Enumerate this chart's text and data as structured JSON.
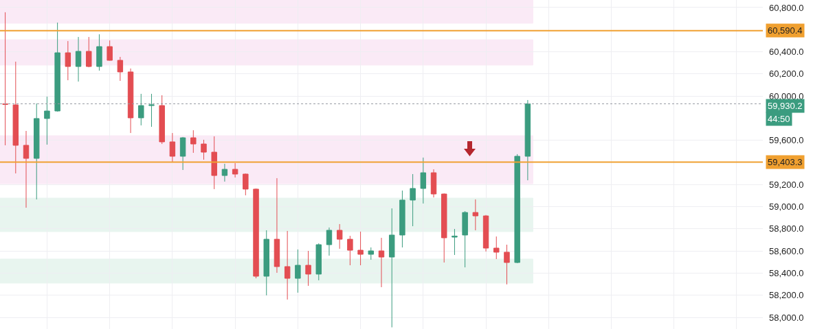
{
  "chart_data": {
    "type": "candlestick",
    "categories": [
      null,
      null,
      null,
      null,
      null,
      null,
      null,
      null,
      null,
      null,
      null,
      null,
      null,
      null,
      null,
      null,
      null,
      null,
      null,
      null,
      null,
      null,
      null,
      null,
      null,
      null,
      null,
      null,
      null,
      null,
      null,
      null,
      null,
      null,
      null,
      null,
      null,
      null,
      null,
      null,
      null,
      null,
      null,
      null,
      null,
      null,
      null,
      null,
      null,
      null,
      null,
      null,
      null,
      null,
      null,
      null,
      null,
      null,
      null,
      null,
      null,
      null,
      null,
      null,
      null,
      null,
      null,
      null,
      null,
      null,
      null,
      null,
      null
    ],
    "ohlc": [
      [
        59930,
        60757,
        59555,
        59925
      ],
      [
        59920,
        60311,
        59301,
        59555
      ],
      [
        59555,
        59685,
        58991,
        59437
      ],
      [
        59437,
        59933,
        59066,
        59797
      ],
      [
        59797,
        59995,
        59561,
        59865
      ],
      [
        59865,
        60664,
        59860,
        60391
      ],
      [
        60391,
        60497,
        60143,
        60267
      ],
      [
        60267,
        60534,
        60131,
        60404
      ],
      [
        60404,
        60534,
        60260,
        60267
      ],
      [
        60267,
        60558,
        60230,
        60447
      ],
      [
        60447,
        60503,
        60320,
        60323
      ],
      [
        60323,
        60354,
        60137,
        60218
      ],
      [
        60218,
        60249,
        59666,
        59803
      ],
      [
        59803,
        60020,
        59735,
        59914
      ],
      [
        59914,
        60020,
        59722,
        59920
      ],
      [
        59914,
        60007,
        59567,
        59586
      ],
      [
        59586,
        59666,
        59400,
        59456
      ],
      [
        59456,
        59630,
        59332,
        59623
      ],
      [
        59623,
        59691,
        59487,
        59567
      ],
      [
        59567,
        59605,
        59425,
        59493
      ],
      [
        59493,
        59636,
        59159,
        59282
      ],
      [
        59282,
        59388,
        59227,
        59338
      ],
      [
        59338,
        59394,
        59264,
        59295
      ],
      [
        59295,
        59300,
        59103,
        59159
      ],
      [
        59159,
        59165,
        58353,
        58372
      ],
      [
        58372,
        58787,
        58199,
        58706
      ],
      [
        58706,
        59258,
        58403,
        58459
      ],
      [
        58459,
        58781,
        58161,
        58353
      ],
      [
        58353,
        58614,
        58223,
        58471
      ],
      [
        58471,
        58601,
        58285,
        58391
      ],
      [
        58391,
        58669,
        58335,
        58657
      ],
      [
        58657,
        58812,
        58558,
        58787
      ],
      [
        58787,
        58843,
        58620,
        58706
      ],
      [
        58706,
        58737,
        58471,
        58607
      ],
      [
        58607,
        58775,
        58471,
        58570
      ],
      [
        58570,
        58632,
        58521,
        58601
      ],
      [
        58601,
        58719,
        58273,
        58545
      ],
      [
        58545,
        58985,
        57910,
        58744
      ],
      [
        58744,
        59146,
        58632,
        59060
      ],
      [
        59060,
        59295,
        58824,
        59165
      ],
      [
        59165,
        59444,
        59029,
        59307
      ],
      [
        59307,
        59338,
        59084,
        59115
      ],
      [
        59115,
        59120,
        58496,
        58719
      ],
      [
        58725,
        58799,
        58564,
        58735
      ],
      [
        58744,
        58960,
        58452,
        58948
      ],
      [
        58948,
        59066,
        58787,
        58917
      ],
      [
        58917,
        58925,
        58595,
        58626
      ],
      [
        58626,
        58731,
        58527,
        58589
      ],
      [
        58589,
        58657,
        58298,
        58496
      ],
      [
        58496,
        59475,
        58490,
        59456
      ],
      [
        59456,
        59964,
        59239,
        59930.2
      ],
      null,
      null,
      null,
      null,
      null,
      null,
      null,
      null,
      null,
      null,
      null,
      null,
      null,
      null,
      null,
      null,
      null,
      null,
      null,
      null,
      null,
      null
    ],
    "ylim": [
      57895,
      60868
    ],
    "yticks": [
      {
        "value": 58000,
        "label": "58,000.0"
      },
      {
        "value": 58200,
        "label": "58,200.0"
      },
      {
        "value": 58400,
        "label": "58,400.0"
      },
      {
        "value": 58600,
        "label": "58,600.0"
      },
      {
        "value": 58800,
        "label": "58,800.0"
      },
      {
        "value": 59000,
        "label": "59,000.0"
      },
      {
        "value": 59200,
        "label": "59,200.0"
      },
      {
        "value": 59600,
        "label": "59,600.0"
      },
      {
        "value": 60000,
        "label": "60,000.0"
      },
      {
        "value": 60200,
        "label": "60,200.0"
      },
      {
        "value": 60400,
        "label": "60,400.0"
      },
      {
        "value": 60800,
        "label": "60,800.0"
      }
    ],
    "ref_lines": [
      {
        "axis": "y",
        "value": 60590.4,
        "label": "60,590.4",
        "color": "#f0a030",
        "line_style": "solid"
      },
      {
        "axis": "y",
        "value": 59403.3,
        "label": "59,403.3",
        "color": "#f0a030",
        "line_style": "solid"
      },
      {
        "axis": "y",
        "value": 59930.2,
        "label": "59,930.2",
        "color": "#9598a1",
        "line_style": "dotted"
      }
    ],
    "bands": [
      {
        "axis": "y",
        "from": 60658,
        "to": 60868,
        "color": "#f3c6e6"
      },
      {
        "axis": "y",
        "from": 60280,
        "to": 60509,
        "color": "#f3c6e6"
      },
      {
        "axis": "y",
        "from": 59208,
        "to": 59642,
        "color": "#f3c6e6"
      },
      {
        "axis": "y",
        "from": 58775,
        "to": 59078,
        "color": "#bfe3d2"
      },
      {
        "axis": "y",
        "from": 58310,
        "to": 58527,
        "color": "#bfe3d2"
      }
    ],
    "annotations": [
      "44:50"
    ],
    "grid": true,
    "tick_labels": "y"
  }
}
